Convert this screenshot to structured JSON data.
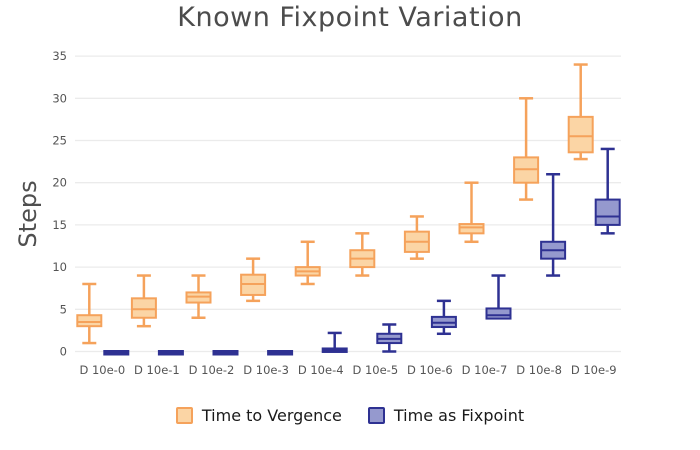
{
  "chart_data": {
    "type": "box",
    "title": "Known Fixpoint Variation",
    "ylabel": "Steps",
    "xlabel": "",
    "ylim": [
      0,
      35
    ],
    "y_ticks": [
      0,
      5,
      10,
      15,
      20,
      25,
      30,
      35
    ],
    "grid": true,
    "legend_position": "bottom",
    "categories": [
      "D 10e-0",
      "D 10e-1",
      "D 10e-2",
      "D 10e-3",
      "D 10e-4",
      "D 10e-5",
      "D 10e-6",
      "D 10e-7",
      "D 10e-8",
      "D 10e-9"
    ],
    "series": [
      {
        "name": "Time to Vergence",
        "stroke_color": "#F5A25B",
        "fill_color": "#FBD5A5",
        "boxes": [
          {
            "low": 1,
            "q1": 3,
            "med": 3.5,
            "q3": 4.3,
            "high": 8
          },
          {
            "low": 3,
            "q1": 4,
            "med": 5,
            "q3": 6.3,
            "high": 9
          },
          {
            "low": 4,
            "q1": 5.8,
            "med": 6.5,
            "q3": 7,
            "high": 9
          },
          {
            "low": 6,
            "q1": 6.7,
            "med": 8,
            "q3": 9.1,
            "high": 11
          },
          {
            "low": 8,
            "q1": 9,
            "med": 9.5,
            "q3": 10,
            "high": 13
          },
          {
            "low": 9,
            "q1": 10,
            "med": 11,
            "q3": 12,
            "high": 14
          },
          {
            "low": 11,
            "q1": 11.8,
            "med": 13,
            "q3": 14.2,
            "high": 16
          },
          {
            "low": 13,
            "q1": 14,
            "med": 14.7,
            "q3": 15.1,
            "high": 20
          },
          {
            "low": 18,
            "q1": 20,
            "med": 21.6,
            "q3": 23,
            "high": 30
          },
          {
            "low": 22.8,
            "q1": 23.6,
            "med": 25.5,
            "q3": 27.8,
            "high": 34
          }
        ]
      },
      {
        "name": "Time as Fixpoint",
        "stroke_color": "#2E3192",
        "fill_color": "#9599CE",
        "boxes": [
          {
            "low": 0,
            "q1": 0,
            "med": 0,
            "q3": 0,
            "high": 0
          },
          {
            "low": 0,
            "q1": 0,
            "med": 0,
            "q3": 0,
            "high": 0
          },
          {
            "low": 0,
            "q1": 0,
            "med": 0,
            "q3": 0,
            "high": 0
          },
          {
            "low": 0,
            "q1": 0,
            "med": 0,
            "q3": 0,
            "high": 0
          },
          {
            "low": 0,
            "q1": 0,
            "med": 0,
            "q3": 0.3,
            "high": 2.2
          },
          {
            "low": 0,
            "q1": 1,
            "med": 1.5,
            "q3": 2.1,
            "high": 3.2
          },
          {
            "low": 2.1,
            "q1": 2.9,
            "med": 3.4,
            "q3": 4.1,
            "high": 6
          },
          {
            "low": 3.9,
            "q1": 3.9,
            "med": 4.3,
            "q3": 5.1,
            "high": 9
          },
          {
            "low": 9,
            "q1": 11,
            "med": 12,
            "q3": 13,
            "high": 21
          },
          {
            "low": 14,
            "q1": 15,
            "med": 16,
            "q3": 18,
            "high": 24
          }
        ]
      }
    ],
    "colors": {
      "title_text": "#4c4c4c",
      "axis_text": "#545454",
      "gridline": "#ebebeb",
      "legend_text": "#1a1a1a"
    }
  }
}
